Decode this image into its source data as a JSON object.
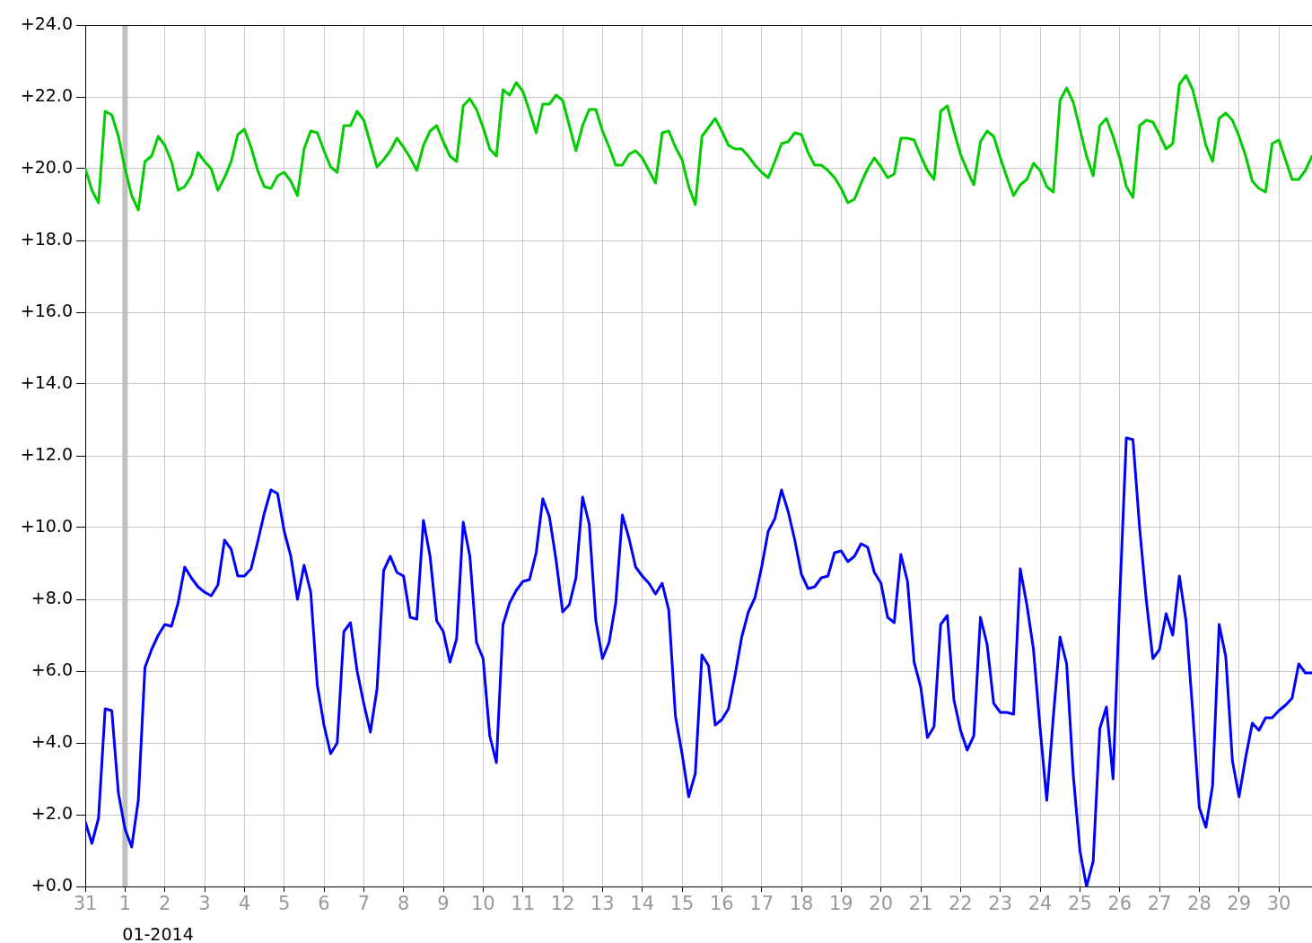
{
  "chart_data": {
    "type": "line",
    "grid": true,
    "legend": false,
    "marker": "none",
    "line_style": "solid",
    "xlim": [
      "2013-12-31",
      "2014-01-30T20:00"
    ],
    "xticks": [
      {
        "value": "2013-12-31",
        "label": "31"
      },
      {
        "value": "2014-01-01",
        "label": "1"
      },
      {
        "value": "2014-01-02",
        "label": "2"
      },
      {
        "value": "2014-01-03",
        "label": "3"
      },
      {
        "value": "2014-01-04",
        "label": "4"
      },
      {
        "value": "2014-01-05",
        "label": "5"
      },
      {
        "value": "2014-01-06",
        "label": "6"
      },
      {
        "value": "2014-01-07",
        "label": "7"
      },
      {
        "value": "2014-01-08",
        "label": "8"
      },
      {
        "value": "2014-01-09",
        "label": "9"
      },
      {
        "value": "2014-01-10",
        "label": "10"
      },
      {
        "value": "2014-01-11",
        "label": "11"
      },
      {
        "value": "2014-01-12",
        "label": "12"
      },
      {
        "value": "2014-01-13",
        "label": "13"
      },
      {
        "value": "2014-01-14",
        "label": "14"
      },
      {
        "value": "2014-01-15",
        "label": "15"
      },
      {
        "value": "2014-01-16",
        "label": "16"
      },
      {
        "value": "2014-01-17",
        "label": "17"
      },
      {
        "value": "2014-01-18",
        "label": "18"
      },
      {
        "value": "2014-01-19",
        "label": "19"
      },
      {
        "value": "2014-01-20",
        "label": "20"
      },
      {
        "value": "2014-01-21",
        "label": "21"
      },
      {
        "value": "2014-01-22",
        "label": "22"
      },
      {
        "value": "2014-01-23",
        "label": "23"
      },
      {
        "value": "2014-01-24",
        "label": "24"
      },
      {
        "value": "2014-01-25",
        "label": "25"
      },
      {
        "value": "2014-01-26",
        "label": "26"
      },
      {
        "value": "2014-01-27",
        "label": "27"
      },
      {
        "value": "2014-01-28",
        "label": "28"
      },
      {
        "value": "2014-01-29",
        "label": "29"
      },
      {
        "value": "2014-01-30",
        "label": "30"
      }
    ],
    "ylim": [
      0,
      24
    ],
    "yticks": [
      {
        "value": 0,
        "label": "+0.0"
      },
      {
        "value": 2,
        "label": "+2.0"
      },
      {
        "value": 4,
        "label": "+4.0"
      },
      {
        "value": 6,
        "label": "+6.0"
      },
      {
        "value": 8,
        "label": "+8.0"
      },
      {
        "value": 10,
        "label": "+10.0"
      },
      {
        "value": 12,
        "label": "+12.0"
      },
      {
        "value": 14,
        "label": "+14.0"
      },
      {
        "value": 16,
        "label": "+16.0"
      },
      {
        "value": 18,
        "label": "+18.0"
      },
      {
        "value": 20,
        "label": "+20.0"
      },
      {
        "value": 22,
        "label": "+22.0"
      },
      {
        "value": 24,
        "label": "+24.0"
      }
    ],
    "ref_lines": [
      {
        "axis": "x",
        "value": "2014-01-01",
        "color": "#c0c0c0"
      }
    ],
    "annotations": [
      "01-2014"
    ],
    "x": [
      "2013-12-31T00:00",
      "2013-12-31T04:00",
      "2013-12-31T08:00",
      "2013-12-31T12:00",
      "2013-12-31T16:00",
      "2013-12-31T20:00",
      "2014-01-01T00:00",
      "2014-01-01T04:00",
      "2014-01-01T08:00",
      "2014-01-01T12:00",
      "2014-01-01T16:00",
      "2014-01-01T20:00",
      "2014-01-02T00:00",
      "2014-01-02T04:00",
      "2014-01-02T08:00",
      "2014-01-02T12:00",
      "2014-01-02T16:00",
      "2014-01-02T20:00",
      "2014-01-03T00:00",
      "2014-01-03T04:00",
      "2014-01-03T08:00",
      "2014-01-03T12:00",
      "2014-01-03T16:00",
      "2014-01-03T20:00",
      "2014-01-04T00:00",
      "2014-01-04T04:00",
      "2014-01-04T08:00",
      "2014-01-04T12:00",
      "2014-01-04T16:00",
      "2014-01-04T20:00",
      "2014-01-05T00:00",
      "2014-01-05T04:00",
      "2014-01-05T08:00",
      "2014-01-05T12:00",
      "2014-01-05T16:00",
      "2014-01-05T20:00",
      "2014-01-06T00:00",
      "2014-01-06T04:00",
      "2014-01-06T08:00",
      "2014-01-06T12:00",
      "2014-01-06T16:00",
      "2014-01-06T20:00",
      "2014-01-07T00:00",
      "2014-01-07T04:00",
      "2014-01-07T08:00",
      "2014-01-07T12:00",
      "2014-01-07T16:00",
      "2014-01-07T20:00",
      "2014-01-08T00:00",
      "2014-01-08T04:00",
      "2014-01-08T08:00",
      "2014-01-08T12:00",
      "2014-01-08T16:00",
      "2014-01-08T20:00",
      "2014-01-09T00:00",
      "2014-01-09T04:00",
      "2014-01-09T08:00",
      "2014-01-09T12:00",
      "2014-01-09T16:00",
      "2014-01-09T20:00",
      "2014-01-10T00:00",
      "2014-01-10T04:00",
      "2014-01-10T08:00",
      "2014-01-10T12:00",
      "2014-01-10T16:00",
      "2014-01-10T20:00",
      "2014-01-11T00:00",
      "2014-01-11T04:00",
      "2014-01-11T08:00",
      "2014-01-11T12:00",
      "2014-01-11T16:00",
      "2014-01-11T20:00",
      "2014-01-12T00:00",
      "2014-01-12T04:00",
      "2014-01-12T08:00",
      "2014-01-12T12:00",
      "2014-01-12T16:00",
      "2014-01-12T20:00",
      "2014-01-13T00:00",
      "2014-01-13T04:00",
      "2014-01-13T08:00",
      "2014-01-13T12:00",
      "2014-01-13T16:00",
      "2014-01-13T20:00",
      "2014-01-14T00:00",
      "2014-01-14T04:00",
      "2014-01-14T08:00",
      "2014-01-14T12:00",
      "2014-01-14T16:00",
      "2014-01-14T20:00",
      "2014-01-15T00:00",
      "2014-01-15T04:00",
      "2014-01-15T08:00",
      "2014-01-15T12:00",
      "2014-01-15T16:00",
      "2014-01-15T20:00",
      "2014-01-16T00:00",
      "2014-01-16T04:00",
      "2014-01-16T08:00",
      "2014-01-16T12:00",
      "2014-01-16T16:00",
      "2014-01-16T20:00",
      "2014-01-17T00:00",
      "2014-01-17T04:00",
      "2014-01-17T08:00",
      "2014-01-17T12:00",
      "2014-01-17T16:00",
      "2014-01-17T20:00",
      "2014-01-18T00:00",
      "2014-01-18T04:00",
      "2014-01-18T08:00",
      "2014-01-18T12:00",
      "2014-01-18T16:00",
      "2014-01-18T20:00",
      "2014-01-19T00:00",
      "2014-01-19T04:00",
      "2014-01-19T08:00",
      "2014-01-19T12:00",
      "2014-01-19T16:00",
      "2014-01-19T20:00",
      "2014-01-20T00:00",
      "2014-01-20T04:00",
      "2014-01-20T08:00",
      "2014-01-20T12:00",
      "2014-01-20T16:00",
      "2014-01-20T20:00",
      "2014-01-21T00:00",
      "2014-01-21T04:00",
      "2014-01-21T08:00",
      "2014-01-21T12:00",
      "2014-01-21T16:00",
      "2014-01-21T20:00",
      "2014-01-22T00:00",
      "2014-01-22T04:00",
      "2014-01-22T08:00",
      "2014-01-22T12:00",
      "2014-01-22T16:00",
      "2014-01-22T20:00",
      "2014-01-23T00:00",
      "2014-01-23T04:00",
      "2014-01-23T08:00",
      "2014-01-23T12:00",
      "2014-01-23T16:00",
      "2014-01-23T20:00",
      "2014-01-24T00:00",
      "2014-01-24T04:00",
      "2014-01-24T08:00",
      "2014-01-24T12:00",
      "2014-01-24T16:00",
      "2014-01-24T20:00",
      "2014-01-25T00:00",
      "2014-01-25T04:00",
      "2014-01-25T08:00",
      "2014-01-25T12:00",
      "2014-01-25T16:00",
      "2014-01-25T20:00",
      "2014-01-26T00:00",
      "2014-01-26T04:00",
      "2014-01-26T08:00",
      "2014-01-26T12:00",
      "2014-01-26T16:00",
      "2014-01-26T20:00",
      "2014-01-27T00:00",
      "2014-01-27T04:00",
      "2014-01-27T08:00",
      "2014-01-27T12:00",
      "2014-01-27T16:00",
      "2014-01-27T20:00",
      "2014-01-28T00:00",
      "2014-01-28T04:00",
      "2014-01-28T08:00",
      "2014-01-28T12:00",
      "2014-01-28T16:00",
      "2014-01-28T20:00",
      "2014-01-29T00:00",
      "2014-01-29T04:00",
      "2014-01-29T08:00",
      "2014-01-29T12:00",
      "2014-01-29T16:00",
      "2014-01-29T20:00",
      "2014-01-30T00:00",
      "2014-01-30T04:00",
      "2014-01-30T08:00",
      "2014-01-30T12:00",
      "2014-01-30T16:00",
      "2014-01-30T20:00"
    ],
    "series": [
      {
        "color": "#00cc00",
        "values": [
          20.0,
          19.4,
          19.05,
          21.6,
          21.5,
          20.9,
          20.0,
          19.25,
          18.85,
          20.2,
          20.35,
          20.9,
          20.65,
          20.2,
          19.4,
          19.5,
          19.8,
          20.45,
          20.2,
          20.0,
          19.4,
          19.75,
          20.2,
          20.95,
          21.1,
          20.6,
          19.95,
          19.5,
          19.45,
          19.8,
          19.9,
          19.65,
          19.25,
          20.55,
          21.05,
          21.0,
          20.5,
          20.05,
          19.9,
          21.2,
          21.2,
          21.6,
          21.35,
          20.7,
          20.05,
          20.25,
          20.5,
          20.85,
          20.6,
          20.3,
          19.95,
          20.65,
          21.05,
          21.2,
          20.75,
          20.35,
          20.2,
          21.75,
          21.95,
          21.65,
          21.15,
          20.55,
          20.35,
          22.2,
          22.05,
          22.4,
          22.15,
          21.6,
          21.0,
          21.8,
          21.8,
          22.05,
          21.9,
          21.2,
          20.5,
          21.2,
          21.65,
          21.65,
          21.05,
          20.6,
          20.1,
          20.1,
          20.4,
          20.5,
          20.3,
          19.95,
          19.6,
          21.0,
          21.05,
          20.6,
          20.25,
          19.5,
          19.0,
          20.9,
          21.15,
          21.4,
          21.05,
          20.65,
          20.55,
          20.55,
          20.35,
          20.1,
          19.9,
          19.75,
          20.2,
          20.7,
          20.75,
          21.0,
          20.95,
          20.45,
          20.1,
          20.1,
          19.95,
          19.75,
          19.45,
          19.05,
          19.15,
          19.6,
          20.0,
          20.3,
          20.05,
          19.75,
          19.85,
          20.85,
          20.85,
          20.8,
          20.35,
          19.95,
          19.7,
          21.6,
          21.75,
          21.05,
          20.4,
          19.95,
          19.55,
          20.75,
          21.05,
          20.9,
          20.3,
          19.75,
          19.25,
          19.55,
          19.7,
          20.15,
          19.95,
          19.5,
          19.35,
          21.9,
          22.25,
          21.85,
          21.1,
          20.35,
          19.8,
          21.2,
          21.4,
          20.9,
          20.3,
          19.5,
          19.2,
          21.2,
          21.35,
          21.3,
          20.95,
          20.55,
          20.7,
          22.35,
          22.6,
          22.2,
          21.45,
          20.65,
          20.2,
          21.4,
          21.55,
          21.35,
          20.9,
          20.35,
          19.65,
          19.45,
          19.35,
          20.7,
          20.8,
          20.25,
          19.7,
          19.7,
          19.95,
          20.35
        ]
      },
      {
        "color": "#0000ff",
        "values": [
          1.8,
          1.2,
          1.9,
          4.95,
          4.9,
          2.6,
          1.6,
          1.1,
          2.4,
          6.1,
          6.6,
          7.0,
          7.3,
          7.25,
          7.9,
          8.9,
          8.6,
          8.35,
          8.2,
          8.1,
          8.4,
          9.65,
          9.4,
          8.65,
          8.65,
          8.85,
          9.6,
          10.4,
          11.05,
          10.95,
          9.9,
          9.2,
          8.0,
          8.95,
          8.2,
          5.6,
          4.5,
          3.7,
          4.0,
          7.1,
          7.35,
          6.0,
          5.1,
          4.3,
          5.5,
          8.8,
          9.2,
          8.75,
          8.65,
          7.5,
          7.45,
          10.2,
          9.2,
          7.4,
          7.1,
          6.25,
          6.9,
          10.15,
          9.2,
          6.8,
          6.35,
          4.2,
          3.45,
          7.3,
          7.9,
          8.25,
          8.5,
          8.55,
          9.3,
          10.8,
          10.3,
          9.1,
          7.65,
          7.85,
          8.6,
          10.85,
          10.1,
          7.4,
          6.35,
          6.8,
          7.9,
          10.35,
          9.7,
          8.9,
          8.65,
          8.45,
          8.15,
          8.45,
          7.7,
          4.75,
          3.7,
          2.5,
          3.15,
          6.45,
          6.15,
          4.5,
          4.65,
          4.95,
          5.9,
          6.95,
          7.65,
          8.05,
          8.9,
          9.9,
          10.25,
          11.05,
          10.45,
          9.65,
          8.7,
          8.3,
          8.35,
          8.6,
          8.65,
          9.3,
          9.35,
          9.05,
          9.2,
          9.55,
          9.45,
          8.75,
          8.45,
          7.5,
          7.35,
          9.25,
          8.5,
          6.25,
          5.55,
          4.15,
          4.45,
          7.3,
          7.55,
          5.2,
          4.35,
          3.8,
          4.2,
          7.5,
          6.75,
          5.1,
          4.85,
          4.85,
          4.8,
          8.85,
          7.85,
          6.6,
          4.4,
          2.4,
          4.75,
          6.95,
          6.2,
          3.1,
          1.0,
          0.0,
          0.7,
          4.4,
          5.0,
          3.0,
          8.0,
          12.5,
          12.45,
          10.0,
          8.0,
          6.35,
          6.6,
          7.6,
          7.0,
          8.65,
          7.4,
          4.9,
          2.2,
          1.65,
          2.8,
          7.3,
          6.4,
          3.5,
          2.5,
          3.6,
          4.55,
          4.35,
          4.7,
          4.7,
          4.9,
          5.05,
          5.25,
          6.2,
          5.95,
          5.95
        ]
      }
    ]
  }
}
